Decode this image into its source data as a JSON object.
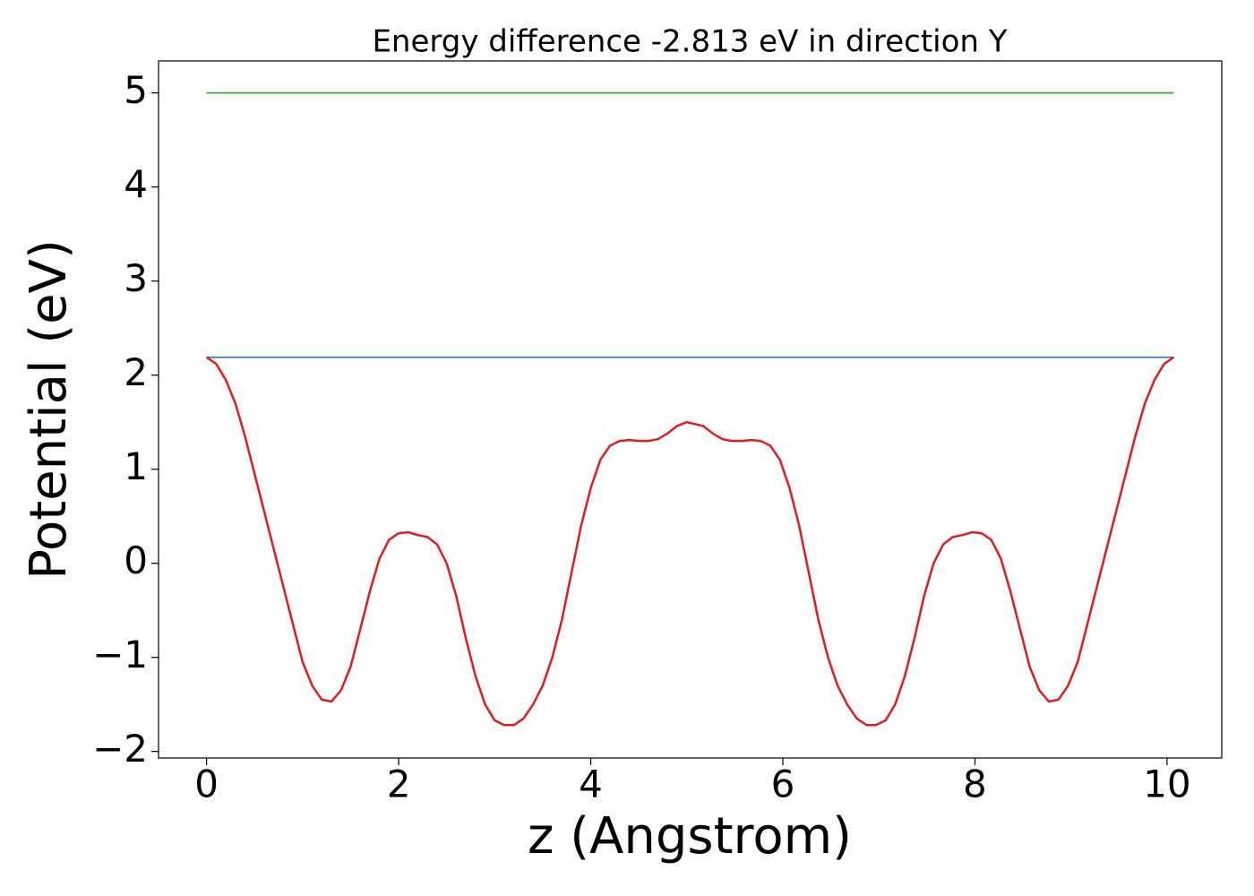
{
  "chart_data": {
    "type": "line",
    "title": "Energy difference -2.813 eV in direction Y",
    "x_label": "z (Angstrom)",
    "y_label": "Potential (eV)",
    "xlim": [
      -0.5,
      10.57
    ],
    "ylim": [
      -2.07,
      5.34
    ],
    "xticks": [
      0,
      2,
      4,
      6,
      8,
      10
    ],
    "yticks": [
      {
        "value": -2,
        "label": "−2"
      },
      {
        "value": -1,
        "label": "−1"
      },
      0,
      1,
      2,
      3,
      4,
      5
    ],
    "series": [
      {
        "color": "#4daf4a",
        "x": [
          0,
          10.07
        ],
        "values": [
          5,
          5
        ]
      },
      {
        "color": "#377eb8",
        "x": [
          0,
          10.07
        ],
        "values": [
          2.19,
          2.19
        ]
      },
      {
        "color": "#e41a1c",
        "x": [
          0,
          0.1,
          0.2,
          0.3,
          0.4,
          0.5,
          0.6,
          0.7,
          0.8,
          0.9,
          1.0,
          1.1,
          1.2,
          1.3,
          1.4,
          1.5,
          1.6,
          1.7,
          1.8,
          1.9,
          2.0,
          2.1,
          2.2,
          2.3,
          2.4,
          2.5,
          2.6,
          2.7,
          2.8,
          2.9,
          3.0,
          3.1,
          3.2,
          3.3,
          3.4,
          3.5,
          3.6,
          3.7,
          3.8,
          3.9,
          4.0,
          4.1,
          4.2,
          4.3,
          4.4,
          4.5,
          4.6,
          4.7,
          4.8,
          4.9,
          5.0,
          5.17,
          5.27,
          5.37,
          5.47,
          5.57,
          5.67,
          5.77,
          5.87,
          5.97,
          6.07,
          6.17,
          6.27,
          6.37,
          6.47,
          6.57,
          6.67,
          6.77,
          6.87,
          6.97,
          7.07,
          7.17,
          7.27,
          7.37,
          7.47,
          7.57,
          7.67,
          7.77,
          7.87,
          7.97,
          8.07,
          8.17,
          8.27,
          8.37,
          8.47,
          8.57,
          8.67,
          8.77,
          8.87,
          8.97,
          9.07,
          9.17,
          9.27,
          9.37,
          9.47,
          9.57,
          9.67,
          9.77,
          9.87,
          9.97,
          10.07
        ],
        "values": [
          2.19,
          2.12,
          1.95,
          1.7,
          1.35,
          0.95,
          0.55,
          0.15,
          -0.25,
          -0.65,
          -1.05,
          -1.3,
          -1.45,
          -1.47,
          -1.35,
          -1.1,
          -0.7,
          -0.3,
          0.05,
          0.25,
          0.32,
          0.33,
          0.3,
          0.28,
          0.2,
          0.0,
          -0.35,
          -0.8,
          -1.2,
          -1.5,
          -1.67,
          -1.72,
          -1.72,
          -1.65,
          -1.5,
          -1.3,
          -1.0,
          -0.6,
          -0.1,
          0.4,
          0.8,
          1.1,
          1.25,
          1.3,
          1.31,
          1.3,
          1.3,
          1.32,
          1.38,
          1.46,
          1.5,
          1.46,
          1.38,
          1.32,
          1.3,
          1.3,
          1.31,
          1.3,
          1.25,
          1.1,
          0.8,
          0.4,
          -0.1,
          -0.6,
          -1.0,
          -1.3,
          -1.5,
          -1.65,
          -1.72,
          -1.72,
          -1.67,
          -1.5,
          -1.2,
          -0.8,
          -0.35,
          0.0,
          0.2,
          0.28,
          0.3,
          0.33,
          0.32,
          0.25,
          0.05,
          -0.3,
          -0.7,
          -1.1,
          -1.35,
          -1.47,
          -1.45,
          -1.3,
          -1.05,
          -0.65,
          -0.25,
          0.15,
          0.55,
          0.95,
          1.35,
          1.7,
          1.95,
          2.12,
          2.19
        ]
      }
    ]
  }
}
